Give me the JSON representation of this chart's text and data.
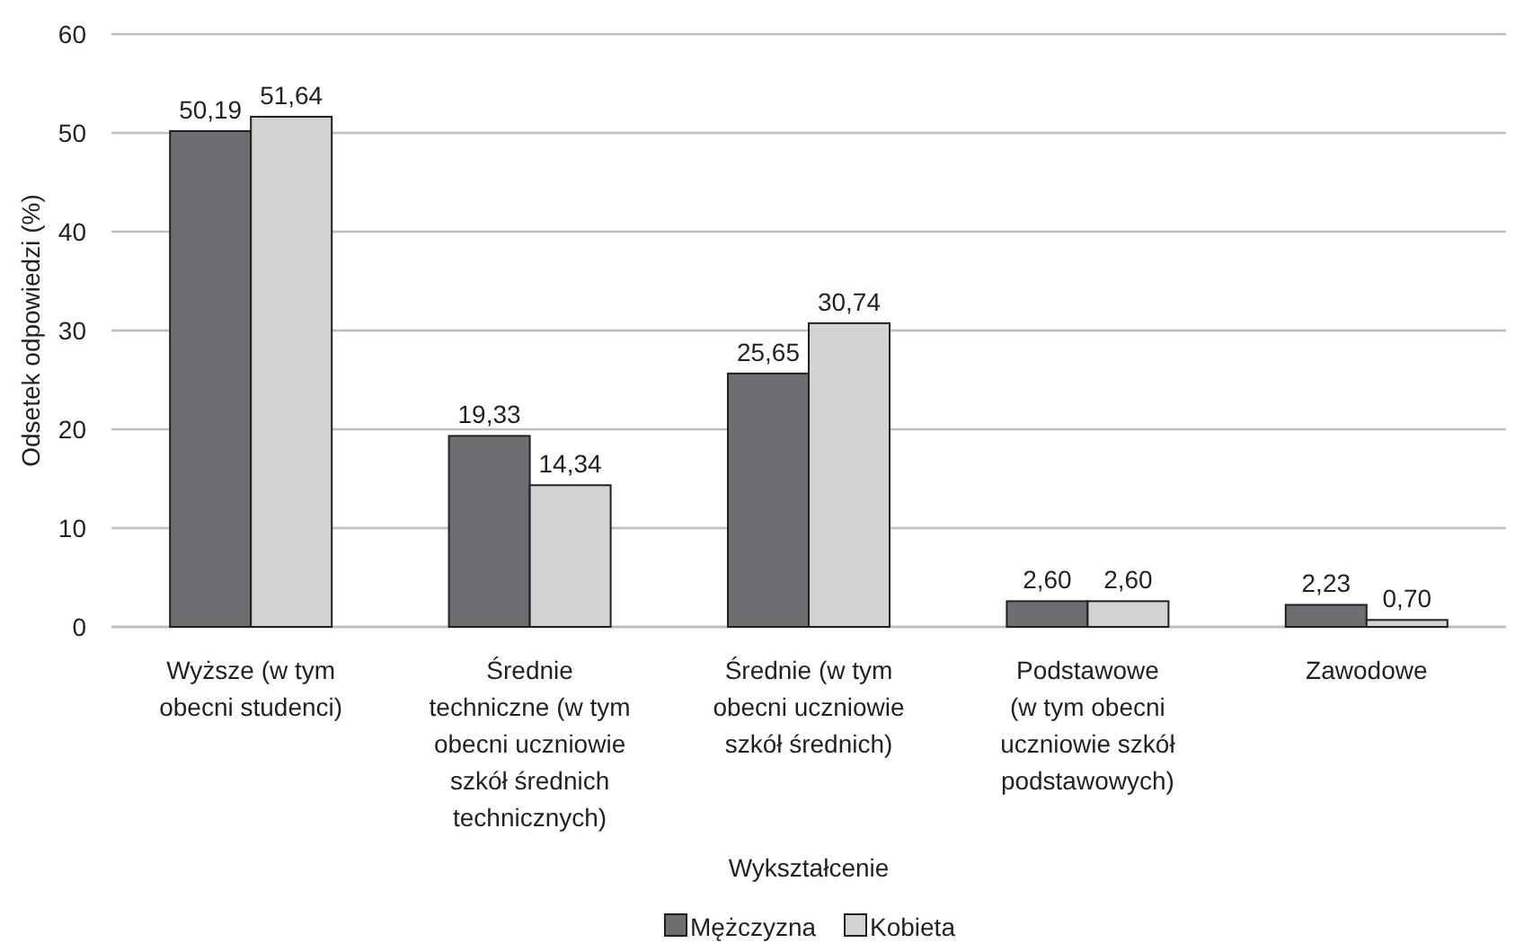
{
  "chart_data": {
    "type": "bar",
    "xlabel": "Wykształcenie",
    "ylabel": "Odsetek odpowiedzi (%)",
    "categories": [
      "Wyższe (w tym\nobecni studenci)",
      "Średnie\ntechniczne (w tym\nobecni uczniowie\nszkół średnich\ntechnicznych)",
      "Średnie (w tym\nobecni uczniowie\nszkół średnich)",
      "Podstawowe\n(w tym obecni\nuczniowie szkół\npodstawowych)",
      "Zawodowe"
    ],
    "series": [
      {
        "name": "Mężczyzna",
        "color": "#6d6e71",
        "values": [
          50.19,
          19.33,
          25.65,
          2.6,
          2.23
        ],
        "value_labels": [
          "50,19",
          "19,33",
          "25,65",
          "2,60",
          "2,23"
        ]
      },
      {
        "name": "Kobieta",
        "color": "#d1d3d4",
        "values": [
          51.64,
          14.34,
          30.74,
          2.6,
          0.7
        ],
        "value_labels": [
          "51,64",
          "14,34",
          "30,74",
          "2,60",
          "0,70"
        ]
      }
    ],
    "ylim": [
      0,
      60
    ],
    "yticks": [
      0,
      10,
      20,
      30,
      40,
      50,
      60
    ],
    "grid": "y",
    "legend": "bottom"
  }
}
